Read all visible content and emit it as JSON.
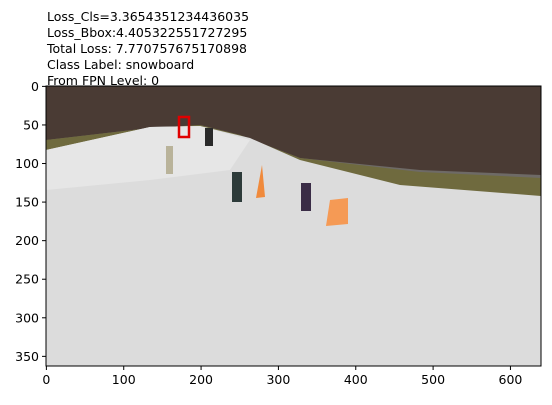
{
  "chart_data": {
    "type": "image",
    "title_lines": [
      "Loss_Cls=3.3654351234436035",
      "Loss_Bbox:4.405322551727295",
      "Total Loss: 7.770757675170898",
      "Class Label: snowboard",
      "From FPN Level: 0"
    ],
    "xlim": [
      -0.5,
      639.5
    ],
    "ylim": [
      362.5,
      -0.5
    ],
    "xticks": [
      0,
      100,
      200,
      300,
      400,
      500,
      600
    ],
    "yticks": [
      0,
      50,
      100,
      150,
      200,
      250,
      300,
      350
    ]
  }
}
